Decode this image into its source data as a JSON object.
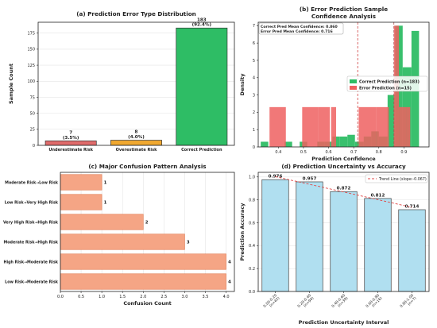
{
  "chart_data": [
    {
      "type": "bar",
      "title": "(a) Prediction Error Type Distribution",
      "xlabel": "",
      "ylabel": "Sample Count",
      "categories": [
        "Underestimate Risk",
        "Overestimate Risk",
        "Correct Prediction"
      ],
      "values": [
        7,
        8,
        183
      ],
      "value_labels": [
        "7\n(3.5%)",
        "8\n(4.0%)",
        "183\n(92.4%)"
      ],
      "colors": [
        "#e06b6b",
        "#f0a830",
        "#2ebd65"
      ],
      "ylim": [
        0,
        192
      ],
      "yticks": [
        0,
        25,
        50,
        75,
        100,
        125,
        150,
        175
      ],
      "grid": true
    },
    {
      "type": "histogram",
      "title": "(b) Error Prediction Sample\nConfidence Analysis",
      "xlabel": "Prediction Confidence",
      "ylabel": "Density",
      "xlim": [
        0.32,
        1.0
      ],
      "ylim": [
        0,
        7.2
      ],
      "xticks": [
        0.4,
        0.5,
        0.6,
        0.7,
        0.8,
        0.9
      ],
      "yticks": [
        0,
        1,
        2,
        3,
        4,
        5,
        6,
        7
      ],
      "annotation": [
        "Correct Pred Mean Confidence: 0.860",
        "Error Pred Mean Confidence: 0.716"
      ],
      "mean_lines": [
        0.716,
        0.86
      ],
      "legend_position": "center-right",
      "series": [
        {
          "name": "Correct Prediction (n=183)",
          "color": "#2ebd65",
          "bins": [
            {
              "x0": 0.33,
              "x1": 0.36,
              "y": 0.3
            },
            {
              "x0": 0.425,
              "x1": 0.455,
              "y": 0.3
            },
            {
              "x0": 0.485,
              "x1": 0.515,
              "y": 0.3
            },
            {
              "x0": 0.555,
              "x1": 0.585,
              "y": 0.3
            },
            {
              "x0": 0.585,
              "x1": 0.615,
              "y": 0.3
            },
            {
              "x0": 0.615,
              "x1": 0.645,
              "y": 0.6
            },
            {
              "x0": 0.645,
              "x1": 0.675,
              "y": 0.6
            },
            {
              "x0": 0.675,
              "x1": 0.705,
              "y": 0.7
            },
            {
              "x0": 0.705,
              "x1": 0.74,
              "y": 0.3
            },
            {
              "x0": 0.74,
              "x1": 0.77,
              "y": 0.6
            },
            {
              "x0": 0.77,
              "x1": 0.8,
              "y": 0.9
            },
            {
              "x0": 0.8,
              "x1": 0.835,
              "y": 0.6
            },
            {
              "x0": 0.835,
              "x1": 0.865,
              "y": 3.0
            },
            {
              "x0": 0.865,
              "x1": 0.895,
              "y": 7.0
            },
            {
              "x0": 0.895,
              "x1": 0.93,
              "y": 4.6
            },
            {
              "x0": 0.93,
              "x1": 0.96,
              "y": 6.7
            }
          ]
        },
        {
          "name": "Error Prediction (n=15)",
          "color": "#ee6060",
          "bins": [
            {
              "x0": 0.365,
              "x1": 0.43,
              "y": 2.3
            },
            {
              "x0": 0.495,
              "x1": 0.56,
              "y": 2.3
            },
            {
              "x0": 0.56,
              "x1": 0.605,
              "y": 2.3
            },
            {
              "x0": 0.61,
              "x1": 0.63,
              "y": 2.3
            },
            {
              "x0": 0.72,
              "x1": 0.79,
              "y": 2.3
            },
            {
              "x0": 0.79,
              "x1": 0.84,
              "y": 2.3
            },
            {
              "x0": 0.86,
              "x1": 0.88,
              "y": 7.0
            },
            {
              "x0": 0.88,
              "x1": 0.91,
              "y": 2.3
            },
            {
              "x0": 0.91,
              "x1": 0.925,
              "y": 2.3
            }
          ]
        }
      ]
    },
    {
      "type": "bar",
      "orientation": "horizontal",
      "title": "(c) Major Confusion Pattern Analysis",
      "xlabel": "Confusion Count",
      "ylabel": "",
      "categories": [
        "Moderate Risk→Low Risk",
        "Low Risk→Very High Risk",
        "Very High Risk→High Risk",
        "Moderate Risk→High Risk",
        "High Risk→Moderate Risk",
        "Low Risk→Moderate Risk"
      ],
      "values": [
        1,
        1,
        2,
        3,
        4,
        4
      ],
      "color": "#f5a585",
      "xlim": [
        0,
        4.2
      ],
      "xticks": [
        0.0,
        0.5,
        1.0,
        1.5,
        2.0,
        2.5,
        3.0,
        3.5,
        4.0
      ],
      "grid": true
    },
    {
      "type": "bar",
      "title": "(d) Prediction Uncertainty vs Accuracy",
      "xlabel": "Prediction Uncertainty Interval",
      "ylabel": "Prediction Accuracy",
      "categories": [
        "0.00-0.20\n(n=42)",
        "0.20-0.40\n(n=94)",
        "0.40-0.60\n(n=39)",
        "0.60-0.80\n(n=16)",
        "0.80-1.00\n(n=7)"
      ],
      "values": [
        0.976,
        0.957,
        0.872,
        0.812,
        0.714
      ],
      "value_labels": [
        "0.976",
        "0.957",
        "0.872",
        "0.812",
        "0.714"
      ],
      "color": "#b0dff0",
      "ylim": [
        0,
        1.04
      ],
      "yticks": [
        0.0,
        0.2,
        0.4,
        0.6,
        0.8,
        1.0
      ],
      "trend_line": {
        "label": "Trend Line (slope:-0.067)",
        "slope": -0.067,
        "intercept": 1.0026,
        "color": "#e04848"
      },
      "legend_position": "top-right",
      "grid": true
    }
  ]
}
